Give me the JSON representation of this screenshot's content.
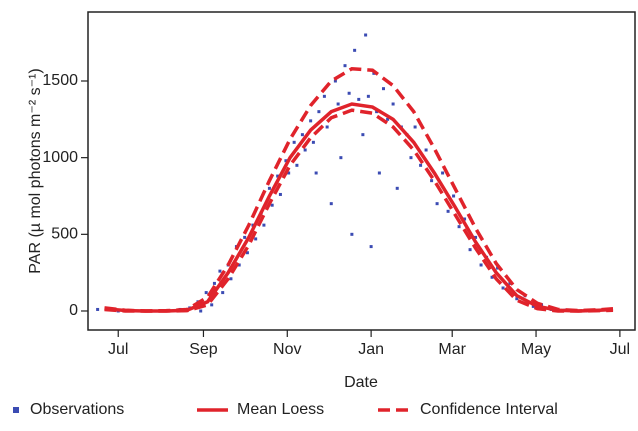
{
  "chart_data": {
    "type": "scatter",
    "x_label": "Date",
    "y_label": "PAR (µ mol photons m⁻² s⁻¹)",
    "xlim": [
      -22,
      376
    ],
    "xticks": [
      {
        "value": 0,
        "label": "Jul"
      },
      {
        "value": 62,
        "label": "Sep"
      },
      {
        "value": 123,
        "label": "Nov"
      },
      {
        "value": 184,
        "label": "Jan"
      },
      {
        "value": 243,
        "label": "Mar"
      },
      {
        "value": 304,
        "label": "May"
      },
      {
        "value": 365,
        "label": "Jul"
      }
    ],
    "ylim": [
      -124,
      1950
    ],
    "yticks": [
      0,
      500,
      1000,
      1500
    ],
    "grid": false,
    "observations": {
      "name": "Observations",
      "color": "#3b4bb3",
      "x": [
        -15,
        0,
        20,
        45,
        52,
        58,
        60,
        64,
        68,
        70,
        74,
        76,
        80,
        82,
        86,
        88,
        92,
        94,
        98,
        100,
        104,
        106,
        110,
        112,
        116,
        118,
        122,
        124,
        128,
        130,
        134,
        136,
        140,
        142,
        144,
        146,
        150,
        152,
        155,
        158,
        160,
        162,
        165,
        168,
        170,
        172,
        175,
        178,
        180,
        182,
        184,
        186,
        188,
        190,
        193,
        196,
        200,
        203,
        206,
        210,
        213,
        216,
        220,
        224,
        228,
        232,
        236,
        240,
        244,
        248,
        252,
        256,
        260,
        264,
        268,
        272,
        276,
        280,
        285,
        290,
        296,
        302,
        308,
        315,
        325,
        340,
        355
      ],
      "values": [
        10,
        0,
        0,
        10,
        20,
        60,
        0,
        120,
        40,
        180,
        260,
        120,
        300,
        210,
        420,
        300,
        480,
        380,
        560,
        470,
        640,
        560,
        800,
        690,
        880,
        760,
        980,
        900,
        1100,
        950,
        1150,
        1050,
        1240,
        1100,
        900,
        1300,
        1400,
        1200,
        700,
        1500,
        1350,
        1000,
        1600,
        1420,
        500,
        1700,
        1380,
        1150,
        1800,
        1400,
        420,
        1550,
        1300,
        900,
        1450,
        1250,
        1350,
        800,
        1200,
        1150,
        1000,
        1200,
        950,
        1050,
        850,
        700,
        900,
        650,
        750,
        550,
        600,
        400,
        480,
        300,
        350,
        220,
        280,
        150,
        180,
        80,
        100,
        30,
        40,
        10,
        5,
        0,
        10
      ]
    },
    "mean_loess": {
      "name": "Mean Loess",
      "color": "#e0232b",
      "x": [
        -10,
        5,
        20,
        35,
        50,
        65,
        80,
        95,
        110,
        125,
        140,
        155,
        170,
        185,
        200,
        215,
        230,
        245,
        260,
        275,
        290,
        305,
        320,
        335,
        350,
        360
      ],
      "values": [
        15,
        3,
        0,
        0,
        5,
        60,
        250,
        480,
        750,
        1000,
        1180,
        1300,
        1350,
        1330,
        1250,
        1100,
        900,
        680,
        450,
        250,
        100,
        30,
        5,
        0,
        5,
        10
      ]
    },
    "confidence_interval": {
      "name": "Confidence Interval",
      "color": "#e0232b",
      "x": [
        -10,
        5,
        20,
        35,
        50,
        65,
        80,
        95,
        110,
        125,
        140,
        155,
        170,
        185,
        200,
        215,
        230,
        245,
        260,
        275,
        290,
        305,
        320,
        335,
        350,
        360
      ],
      "upper": [
        20,
        5,
        0,
        2,
        10,
        90,
        300,
        560,
        850,
        1120,
        1340,
        1500,
        1580,
        1570,
        1470,
        1300,
        1060,
        800,
        540,
        310,
        140,
        50,
        10,
        3,
        8,
        15
      ],
      "lower": [
        10,
        0,
        0,
        0,
        2,
        40,
        210,
        430,
        700,
        950,
        1130,
        1260,
        1310,
        1290,
        1200,
        1050,
        850,
        630,
        410,
        210,
        70,
        15,
        0,
        0,
        2,
        5
      ]
    }
  }
}
